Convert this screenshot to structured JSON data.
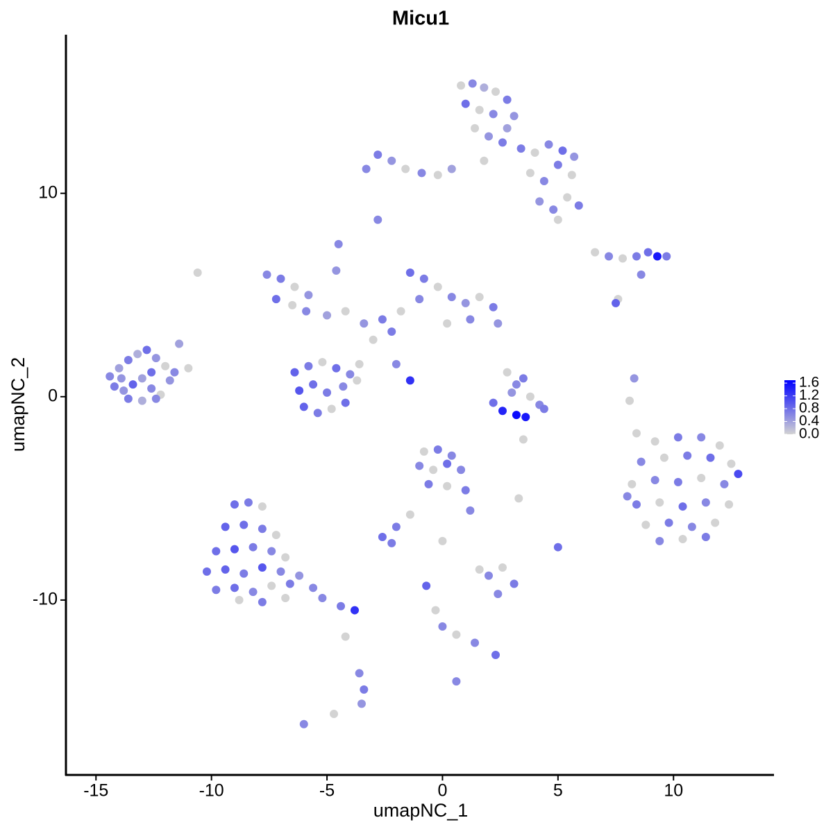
{
  "chart_data": {
    "type": "scatter",
    "title": "Micu1",
    "x_label": "umapNC_1",
    "y_label": "umapNC_2",
    "xlim": [
      -16.3,
      14.35
    ],
    "ylim": [
      -18.6,
      17.8
    ],
    "xticks": [
      -15,
      -10,
      -5,
      0,
      5,
      10
    ],
    "yticks": [
      -10,
      0,
      10
    ],
    "color_low": "#d3d3d3",
    "color_high": "#0000ff",
    "color_lim": [
      0,
      1.69
    ],
    "color_ticks": [
      {
        "value": 0,
        "label": "0.0"
      },
      0.4,
      0.8,
      1.2,
      1.6
    ],
    "series": [
      {
        "x": [
          -14.4,
          -14.0,
          -13.6,
          -13.2,
          -12.8,
          -12.4,
          -12.0,
          -11.6,
          -14.2,
          -13.8,
          -13.4,
          -13.0,
          -12.6,
          -12.2,
          -11.8,
          -13.6,
          -13.0,
          -12.4,
          -11.4,
          -11.0,
          -12.6,
          -13.9
        ],
        "y": [
          1.0,
          1.4,
          1.8,
          2.1,
          2.3,
          1.9,
          1.5,
          1.2,
          0.5,
          0.3,
          0.6,
          0.9,
          0.4,
          0.1,
          0.8,
          -0.1,
          -0.2,
          -0.1,
          2.6,
          1.4,
          1.2,
          0.9
        ],
        "values": [
          0.6,
          0.4,
          0.7,
          0.3,
          0.8,
          0.5,
          0.0,
          0.6,
          0.7,
          0.5,
          0.9,
          0.4,
          0.6,
          0.0,
          0.5,
          0.7,
          0.3,
          0.6,
          0.4,
          0.0,
          0.8,
          0.5
        ]
      },
      {
        "x": [
          0.8,
          1.3,
          1.8,
          2.3,
          2.8,
          3.1,
          1.0,
          1.6,
          2.2,
          2.8,
          1.4,
          2.0,
          2.6,
          1.8,
          -3.3,
          -2.8,
          -2.2,
          -1.6,
          -0.9,
          -0.2,
          0.4,
          3.4,
          4.0,
          4.6,
          5.2,
          5.7,
          3.8,
          4.4,
          5.0,
          5.6,
          4.2,
          4.8,
          5.4,
          5.9,
          5.0
        ],
        "y": [
          15.3,
          15.4,
          15.2,
          15.0,
          14.6,
          13.8,
          14.4,
          14.1,
          13.9,
          13.2,
          13.2,
          12.8,
          12.5,
          11.6,
          11.2,
          11.9,
          11.6,
          11.2,
          11.0,
          10.9,
          11.2,
          12.2,
          12.0,
          12.4,
          12.1,
          11.8,
          11.0,
          10.6,
          11.4,
          10.9,
          9.6,
          9.2,
          9.8,
          9.4,
          8.7
        ],
        "values": [
          0.0,
          0.6,
          0.3,
          0.0,
          0.7,
          0.5,
          0.8,
          0.0,
          0.6,
          0.4,
          0.0,
          0.5,
          0.7,
          0.0,
          0.6,
          0.7,
          0.5,
          0.0,
          0.6,
          0.0,
          0.4,
          0.7,
          0.0,
          0.6,
          0.8,
          0.5,
          0.0,
          0.6,
          0.7,
          0.0,
          0.5,
          0.6,
          0.0,
          0.7,
          0.0
        ]
      },
      {
        "x": [
          -7.6,
          -7.0,
          -6.4,
          -5.8,
          -7.2,
          -6.5,
          -5.9,
          -5.0,
          -4.2,
          -3.4,
          -2.6,
          -1.8,
          -1.0,
          -1.4,
          -0.8,
          -0.2,
          0.4,
          1.0,
          1.6,
          2.2,
          0.2,
          1.2,
          2.4,
          -3.0,
          -2.2,
          -4.6,
          -4.5,
          -6.4,
          -5.8,
          -5.2,
          -4.6,
          -4.0,
          -3.6,
          -6.2,
          -5.6,
          -5.0,
          -4.3,
          -3.7,
          -6.0,
          -5.4,
          -4.8,
          -4.2,
          -2.0,
          -1.4
        ],
        "y": [
          6.0,
          5.8,
          5.4,
          5.0,
          4.8,
          4.5,
          4.2,
          4.0,
          4.2,
          3.6,
          3.8,
          4.2,
          4.8,
          6.1,
          5.8,
          5.4,
          4.9,
          4.6,
          4.9,
          4.4,
          3.6,
          3.8,
          3.6,
          2.8,
          3.2,
          6.2,
          7.5,
          1.2,
          1.5,
          1.7,
          1.4,
          1.1,
          1.6,
          0.3,
          0.6,
          0.2,
          0.5,
          0.8,
          -0.5,
          -0.8,
          -0.6,
          -0.3,
          1.6,
          0.8
        ],
        "values": [
          0.6,
          0.7,
          0.0,
          0.5,
          0.8,
          0.0,
          0.6,
          0.4,
          0.0,
          0.5,
          0.7,
          0.0,
          0.6,
          0.8,
          0.7,
          0.0,
          0.6,
          0.5,
          0.0,
          0.7,
          0.0,
          0.6,
          0.5,
          0.0,
          0.7,
          0.5,
          0.6,
          0.9,
          0.7,
          0.0,
          0.8,
          0.6,
          0.0,
          1.0,
          0.8,
          0.7,
          0.6,
          0.0,
          0.9,
          0.7,
          0.0,
          0.8,
          0.6,
          1.3
        ]
      },
      {
        "x": [
          2.8,
          3.2,
          3.5,
          3.0,
          3.8,
          4.2,
          2.2,
          2.6,
          3.2,
          3.6,
          4.4,
          3.5
        ],
        "y": [
          1.2,
          0.6,
          0.9,
          0.2,
          0.0,
          -0.4,
          -0.3,
          -0.7,
          -0.9,
          -1.0,
          -0.6,
          -2.1
        ],
        "values": [
          0.0,
          0.6,
          0.7,
          0.5,
          0.0,
          0.6,
          0.8,
          1.4,
          1.6,
          1.5,
          0.7,
          0.0
        ]
      },
      {
        "x": [
          6.6,
          7.2,
          7.8,
          8.4,
          8.9,
          9.3,
          9.7,
          8.6,
          7.6,
          7.5
        ],
        "y": [
          7.1,
          6.9,
          6.8,
          6.9,
          7.1,
          6.9,
          6.9,
          6.0,
          4.8,
          4.6
        ],
        "values": [
          0.0,
          0.6,
          0.0,
          0.7,
          0.8,
          1.5,
          0.7,
          0.6,
          0.0,
          0.9
        ]
      },
      {
        "x": [
          9.2,
          10.2,
          11.2,
          12.0,
          8.6,
          9.6,
          10.6,
          11.6,
          12.5,
          8.2,
          9.2,
          10.2,
          11.2,
          12.2,
          12.8,
          8.4,
          9.4,
          10.4,
          11.4,
          12.4,
          8.8,
          9.8,
          10.8,
          11.8,
          9.4,
          10.4,
          11.4,
          8.0
        ],
        "y": [
          -2.2,
          -2.0,
          -2.0,
          -2.4,
          -3.2,
          -3.0,
          -2.9,
          -3.0,
          -3.3,
          -4.3,
          -4.1,
          -4.2,
          -4.0,
          -4.3,
          -3.8,
          -5.3,
          -5.2,
          -5.4,
          -5.2,
          -5.3,
          -6.3,
          -6.2,
          -6.4,
          -6.2,
          -7.1,
          -7.0,
          -6.9,
          -4.9
        ],
        "values": [
          0.0,
          0.7,
          0.6,
          0.0,
          0.6,
          0.0,
          0.7,
          0.8,
          0.0,
          0.0,
          0.6,
          0.7,
          0.0,
          0.6,
          1.1,
          0.7,
          0.0,
          0.8,
          0.6,
          0.0,
          0.0,
          0.7,
          0.6,
          0.0,
          0.6,
          0.0,
          0.7,
          0.6
        ]
      },
      {
        "x": [
          -9.0,
          -8.4,
          -7.8,
          -9.4,
          -8.6,
          -7.8,
          -7.2,
          -9.8,
          -9.0,
          -8.2,
          -7.4,
          -6.8,
          -10.2,
          -9.4,
          -8.6,
          -7.8,
          -7.0,
          -6.2,
          -9.8,
          -9.0,
          -8.2,
          -7.4,
          -6.6,
          -5.6,
          -8.8,
          -7.8,
          -6.8,
          -5.2,
          -4.4,
          -3.8,
          -4.2,
          -3.6,
          -3.4,
          -3.5,
          -6.0
        ],
        "y": [
          -5.3,
          -5.2,
          -5.4,
          -6.4,
          -6.3,
          -6.5,
          -6.8,
          -7.6,
          -7.5,
          -7.4,
          -7.6,
          -7.9,
          -8.6,
          -8.5,
          -8.7,
          -8.4,
          -8.6,
          -8.8,
          -9.5,
          -9.4,
          -9.6,
          -9.3,
          -9.2,
          -9.4,
          -10.0,
          -10.1,
          -9.9,
          -9.9,
          -10.3,
          -10.5,
          -11.8,
          -13.6,
          -14.4,
          -15.1,
          -16.1
        ],
        "values": [
          0.8,
          0.7,
          0.0,
          0.9,
          0.8,
          0.7,
          0.0,
          0.8,
          1.0,
          0.7,
          0.6,
          0.0,
          0.8,
          0.9,
          0.7,
          1.0,
          0.6,
          0.5,
          0.7,
          0.8,
          0.6,
          0.0,
          0.7,
          0.6,
          0.0,
          0.7,
          0.0,
          0.6,
          0.7,
          1.3,
          0.0,
          0.6,
          0.7,
          0.5,
          0.6
        ]
      },
      {
        "x": [
          -0.8,
          -0.2,
          0.4,
          -1.0,
          -0.4,
          0.2,
          0.8,
          -0.6,
          0.2,
          1.0,
          1.2,
          -1.4,
          -2.0,
          -2.6,
          -2.2,
          2.0,
          2.6,
          3.1,
          2.4,
          -0.7,
          -0.3,
          0.0,
          0.6,
          1.4,
          2.3,
          0.6,
          5.0,
          3.3,
          8.3,
          8.1,
          8.4,
          0.0,
          1.6
        ],
        "y": [
          -2.7,
          -2.6,
          -2.9,
          -3.4,
          -3.6,
          -3.3,
          -3.6,
          -4.3,
          -4.4,
          -4.6,
          -5.6,
          -5.8,
          -6.4,
          -6.9,
          -7.2,
          -8.8,
          -8.4,
          -9.2,
          -9.7,
          -9.3,
          -10.5,
          -11.3,
          -11.7,
          -12.1,
          -12.7,
          -14.0,
          -7.4,
          -5.0,
          0.9,
          -0.2,
          -1.8,
          -7.1,
          -8.5
        ],
        "values": [
          0.0,
          0.7,
          0.6,
          0.6,
          0.0,
          0.8,
          0.6,
          0.7,
          0.0,
          0.7,
          0.6,
          0.0,
          0.7,
          0.8,
          0.7,
          0.6,
          0.0,
          0.7,
          0.6,
          0.9,
          0.0,
          0.6,
          0.0,
          0.6,
          0.8,
          0.6,
          0.8,
          0.0,
          0.5,
          0.0,
          0.0,
          0.0,
          0.0
        ]
      },
      {
        "x": [
          -2.8,
          -10.6,
          -4.7
        ],
        "y": [
          8.7,
          6.1,
          -15.6
        ],
        "values": [
          0.6,
          0.0,
          0.0
        ]
      }
    ]
  }
}
